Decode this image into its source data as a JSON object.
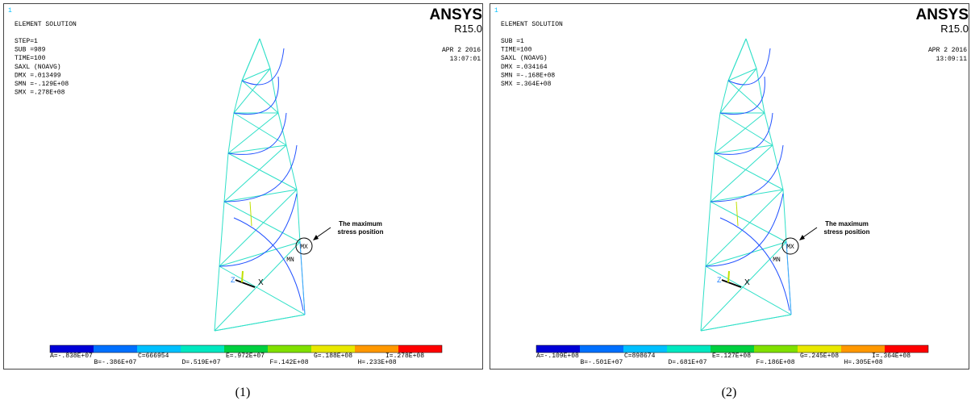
{
  "panels": [
    {
      "corner": "1",
      "title": "ELEMENT SOLUTION",
      "header": [
        "STEP=1",
        "SUB =989",
        "TIME=100",
        "SAXL     (NOAVG)",
        "DMX =.013499",
        "SMN =-.129E+08",
        "SMX =.278E+08"
      ],
      "logo": "ANSYS",
      "version": "R15.0",
      "date": "APR  2 2016",
      "time": "13:07:01",
      "annotation": [
        "The maximum",
        "stress position"
      ],
      "max_label": "MX",
      "min_label": "MN",
      "axis_z": "Z",
      "axis_x": "X",
      "legend": [
        "A=-.838E+07",
        "B=-.386E+07",
        "C=666954",
        "D=.519E+07",
        "E=.972E+07",
        "F=.142E+08",
        "G=.188E+08",
        "H=.233E+08",
        "I=.278E+08"
      ],
      "caption": "(1)"
    },
    {
      "corner": "1",
      "title": "ELEMENT SOLUTION",
      "header": [
        "SUB =1",
        "TIME=100",
        "SAXL     (NOAVG)",
        "DMX =.034164",
        "SMN =-.168E+08",
        "SMX =.364E+08"
      ],
      "logo": "ANSYS",
      "version": "R15.0",
      "date": "APR  2 2016",
      "time": "13:09:11",
      "annotation": [
        "The maximum",
        "stress position"
      ],
      "max_label": "MX",
      "min_label": "MN",
      "axis_z": "Z",
      "axis_x": "X",
      "legend": [
        "A=-.109E+08",
        "B=-.501E+07",
        "C=898674",
        "D=.681E+07",
        "E=.127E+08",
        "F=.186E+08",
        "G=.245E+08",
        "H=.305E+08",
        "I=.364E+08"
      ],
      "caption": "(2)"
    }
  ]
}
